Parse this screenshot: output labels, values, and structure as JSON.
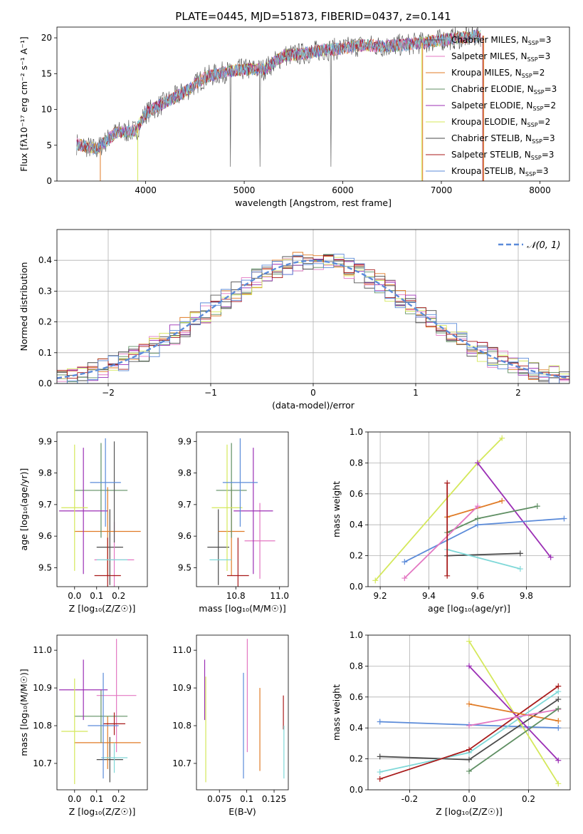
{
  "page_title": "PLATE=0445, MJD=51873, FIBERID=0437, z=0.141",
  "colors": {
    "series": [
      "#555555",
      "#e377c2",
      "#e07b26",
      "#5f8f63",
      "#9b2fb5",
      "#d4e85a",
      "#4a4a4a",
      "#a81a1a",
      "#7fd8d8"
    ],
    "gaussian": "#5b8bd9",
    "blue_series": "#5b8bd9"
  },
  "chart_data": [
    {
      "id": "spectrum",
      "type": "line",
      "title": "PLATE=0445, MJD=51873, FIBERID=0437, z=0.141",
      "xlabel": "wavelength [Angstrom, rest frame]",
      "ylabel": "Flux [fλ10⁻¹⁷ erg cm⁻² s⁻¹ A⁻¹]",
      "xlim": [
        3100,
        8300
      ],
      "ylim": [
        0,
        21.5
      ],
      "xticks": [
        4000,
        5000,
        6000,
        7000,
        8000
      ],
      "yticks": [
        0,
        5,
        10,
        15,
        20
      ],
      "legend": [
        "Chabrier MILES, N_SSP=3",
        "Salpeter MILES, N_SSP=3",
        "Kroupa MILES, N_SSP=2",
        "Chabrier ELODIE, N_SSP=3",
        "Salpeter ELODIE, N_SSP=2",
        "Kroupa ELODIE, N_SSP=2",
        "Chabrier STELIB, N_SSP=3",
        "Salpeter STELIB, N_SSP=3",
        "Kroupa STELIB, N_SSP=3"
      ],
      "legend_placement": "upper-right",
      "continuum_x": [
        3300,
        3500,
        3700,
        3900,
        4000,
        4200,
        4400,
        4600,
        4800,
        5000,
        5200,
        5400,
        5600,
        5800,
        6000,
        6200,
        6400,
        6600,
        6800,
        7000,
        7200,
        7400
      ],
      "continuum_y": [
        5.2,
        4.4,
        6.8,
        7.0,
        9.5,
        11.0,
        12.5,
        14.5,
        15.2,
        15.6,
        15.6,
        17.5,
        17.8,
        18.3,
        18.5,
        19.0,
        18.8,
        19.0,
        19.3,
        19.7,
        20.0,
        20.3
      ]
    },
    {
      "id": "residuals",
      "type": "line",
      "xlabel": "(data-model)/error",
      "ylabel": "Normed distribution",
      "xlim": [
        -2.5,
        2.5
      ],
      "ylim": [
        0,
        0.5
      ],
      "xticks": [
        -2,
        -1,
        0,
        1,
        2
      ],
      "yticks": [
        0.0,
        0.1,
        0.2,
        0.3,
        0.4
      ],
      "grid": true,
      "legend": [
        "𝒩(0, 1)"
      ],
      "legend_placement": "upper-right"
    },
    {
      "id": "age_vs_Z",
      "type": "scatter",
      "xlabel": "Z [log₁₀(Z/Z☉)]",
      "ylabel": "age  [log₁₀(age/yr)]",
      "xlim": [
        -0.08,
        0.33
      ],
      "ylim": [
        9.44,
        9.93
      ],
      "xticks": [
        0.0,
        0.1,
        0.2
      ],
      "yticks": [
        9.5,
        9.6,
        9.7,
        9.8,
        9.9
      ],
      "points": [
        {
          "c": 6,
          "x": 0.16,
          "y": 9.565,
          "ex": 0.06,
          "ey": 0.12
        },
        {
          "c": 1,
          "x": 0.18,
          "y": 9.525,
          "ex": 0.09,
          "ey": 0.12
        },
        {
          "c": 2,
          "x": 0.15,
          "y": 9.615,
          "ex": 0.15,
          "ey": 0.14
        },
        {
          "c": 3,
          "x": 0.12,
          "y": 9.745,
          "ex": 0.12,
          "ey": 0.15
        },
        {
          "c": 4,
          "x": 0.04,
          "y": 9.68,
          "ex": 0.11,
          "ey": 0.2
        },
        {
          "c": 5,
          "x": 0.0,
          "y": 9.69,
          "ex": 0.06,
          "ey": 0.2
        },
        {
          "c": 0,
          "x": 0.18,
          "y": 9.74,
          "ex": 0.0,
          "ey": 0.16
        },
        {
          "c": 7,
          "x": 0.15,
          "y": 9.475,
          "ex": 0.06,
          "ey": 0.12
        },
        {
          "c": 8,
          "x": 0.17,
          "y": 9.525,
          "ex": 0.07,
          "ey": 0.0
        },
        {
          "c": 9,
          "x": 0.14,
          "y": 9.77,
          "ex": 0.07,
          "ey": 0.14
        }
      ]
    },
    {
      "id": "age_vs_mass",
      "type": "scatter",
      "xlabel": "mass [log₁₀(M/M☉)]",
      "ylabel": "",
      "xlim": [
        10.62,
        11.04
      ],
      "ylim": [
        9.44,
        9.93
      ],
      "xticks": [
        10.8,
        11.0
      ],
      "yticks": [
        9.5,
        9.6,
        9.7,
        9.8,
        9.9
      ],
      "points": [
        {
          "c": 6,
          "x": 10.72,
          "y": 9.565,
          "ex": 0.05,
          "ey": 0.12
        },
        {
          "c": 1,
          "x": 10.91,
          "y": 9.585,
          "ex": 0.07,
          "ey": 0.12
        },
        {
          "c": 2,
          "x": 10.78,
          "y": 9.615,
          "ex": 0.06,
          "ey": 0.14
        },
        {
          "c": 3,
          "x": 10.78,
          "y": 9.745,
          "ex": 0.07,
          "ey": 0.15
        },
        {
          "c": 4,
          "x": 10.88,
          "y": 9.68,
          "ex": 0.09,
          "ey": 0.2
        },
        {
          "c": 5,
          "x": 10.76,
          "y": 9.69,
          "ex": 0.07,
          "ey": 0.2
        },
        {
          "c": 7,
          "x": 10.81,
          "y": 9.475,
          "ex": 0.05,
          "ey": 0.12
        },
        {
          "c": 8,
          "x": 10.73,
          "y": 9.525,
          "ex": 0.05,
          "ey": 0.0
        },
        {
          "c": 9,
          "x": 10.82,
          "y": 9.77,
          "ex": 0.08,
          "ey": 0.14
        }
      ]
    },
    {
      "id": "weight_vs_age",
      "type": "line",
      "xlabel": "age  [log₁₀(age/yr)]",
      "ylabel": "mass weight",
      "xlim": [
        9.15,
        9.98
      ],
      "ylim": [
        0,
        1.0
      ],
      "xticks": [
        9.2,
        9.4,
        9.6,
        9.8
      ],
      "yticks": [
        0.0,
        0.2,
        0.4,
        0.6,
        0.8,
        1.0
      ],
      "grid": true,
      "series": [
        {
          "c": 5,
          "x": [
            9.18,
            9.6,
            9.7
          ],
          "y": [
            0.04,
            0.8,
            0.96
          ]
        },
        {
          "c": 4,
          "x": [
            9.6,
            9.9
          ],
          "y": [
            0.8,
            0.19
          ]
        },
        {
          "c": 3,
          "x": [
            9.475,
            9.6,
            9.845
          ],
          "y": [
            0.35,
            0.44,
            0.52
          ]
        },
        {
          "c": 9,
          "x": [
            9.3,
            9.6,
            9.955
          ],
          "y": [
            0.16,
            0.4,
            0.44
          ]
        },
        {
          "c": 2,
          "x": [
            9.475,
            9.7
          ],
          "y": [
            0.45,
            0.555
          ]
        },
        {
          "c": 1,
          "x": [
            9.3,
            9.6
          ],
          "y": [
            0.055,
            0.52
          ]
        },
        {
          "c": 6,
          "x": [
            9.475,
            9.775
          ],
          "y": [
            0.2,
            0.215
          ]
        },
        {
          "c": 8,
          "x": [
            9.475,
            9.775
          ],
          "y": [
            0.24,
            0.115
          ]
        },
        {
          "c": 7,
          "x": [
            9.475,
            9.475
          ],
          "y": [
            0.07,
            0.67
          ]
        }
      ]
    },
    {
      "id": "mass_vs_Z",
      "type": "scatter",
      "xlabel": "Z [log₁₀(Z/Z☉)]",
      "ylabel": "mass [log₁₀(M/M☉)]",
      "xlim": [
        -0.08,
        0.33
      ],
      "ylim": [
        10.63,
        11.04
      ],
      "xticks": [
        0.0,
        0.1,
        0.2
      ],
      "yticks": [
        10.7,
        10.8,
        10.9,
        11.0
      ],
      "points": [
        {
          "c": 6,
          "x": 0.16,
          "y": 10.71,
          "ex": 0.06,
          "ey": 0.06
        },
        {
          "c": 1,
          "x": 0.19,
          "y": 10.88,
          "ex": 0.09,
          "ey": 0.15
        },
        {
          "c": 2,
          "x": 0.15,
          "y": 10.755,
          "ex": 0.15,
          "ey": 0.07
        },
        {
          "c": 3,
          "x": 0.12,
          "y": 10.825,
          "ex": 0.12,
          "ey": 0.07
        },
        {
          "c": 4,
          "x": 0.04,
          "y": 10.895,
          "ex": 0.11,
          "ey": 0.08
        },
        {
          "c": 5,
          "x": 0.0,
          "y": 10.785,
          "ex": 0.06,
          "ey": 0.14
        },
        {
          "c": 7,
          "x": 0.18,
          "y": 10.805,
          "ex": 0.05,
          "ey": 0.03
        },
        {
          "c": 8,
          "x": 0.18,
          "y": 10.715,
          "ex": 0.06,
          "ey": 0.04
        },
        {
          "c": 9,
          "x": 0.13,
          "y": 10.8,
          "ex": 0.07,
          "ey": 0.14
        }
      ]
    },
    {
      "id": "mass_vs_ebv",
      "type": "scatter",
      "xlabel": "E(B-V)",
      "ylabel": "",
      "xlim": [
        0.054,
        0.138
      ],
      "ylim": [
        10.63,
        11.04
      ],
      "xticks": [
        0.075,
        0.1,
        0.125
      ],
      "yticks": [
        10.7,
        10.8,
        10.9,
        11.0
      ],
      "points": [
        {
          "c": 4,
          "x": 0.0615,
          "y": 10.895,
          "ex": 0,
          "ey": 0.08
        },
        {
          "c": 5,
          "x": 0.0625,
          "y": 10.79,
          "ex": 0,
          "ey": 0.14
        },
        {
          "c": 9,
          "x": 0.097,
          "y": 10.8,
          "ex": 0,
          "ey": 0.14
        },
        {
          "c": 1,
          "x": 0.1005,
          "y": 10.88,
          "ex": 0,
          "ey": 0.15
        },
        {
          "c": 2,
          "x": 0.112,
          "y": 10.79,
          "ex": 0,
          "ey": 0.11
        },
        {
          "c": 7,
          "x": 0.1335,
          "y": 10.835,
          "ex": 0,
          "ey": 0.045
        },
        {
          "c": 8,
          "x": 0.134,
          "y": 10.73,
          "ex": 0,
          "ey": 0.07
        }
      ]
    },
    {
      "id": "weight_vs_Z",
      "type": "line",
      "xlabel": "Z [log₁₀(Z/Z☉)]",
      "ylabel": "mass weight",
      "xlim": [
        -0.34,
        0.34
      ],
      "ylim": [
        0,
        1.0
      ],
      "xticks": [
        -0.2,
        0.0,
        0.2
      ],
      "yticks": [
        0.0,
        0.2,
        0.4,
        0.6,
        0.8,
        1.0
      ],
      "grid": true,
      "series": [
        {
          "c": 9,
          "x": [
            -0.3,
            0.0,
            0.3
          ],
          "y": [
            0.44,
            0.42,
            0.4
          ]
        },
        {
          "c": 6,
          "x": [
            -0.3,
            0.0,
            0.3
          ],
          "y": [
            0.215,
            0.195,
            0.585
          ]
        },
        {
          "c": 8,
          "x": [
            -0.3,
            0.0,
            0.3
          ],
          "y": [
            0.115,
            0.24,
            0.635
          ]
        },
        {
          "c": 7,
          "x": [
            -0.3,
            0.0,
            0.3
          ],
          "y": [
            0.07,
            0.26,
            0.67
          ]
        },
        {
          "c": 5,
          "x": [
            0.0,
            0.3
          ],
          "y": [
            0.96,
            0.04
          ]
        },
        {
          "c": 4,
          "x": [
            0.0,
            0.3
          ],
          "y": [
            0.8,
            0.19
          ]
        },
        {
          "c": 2,
          "x": [
            0.0,
            0.3
          ],
          "y": [
            0.555,
            0.445
          ]
        },
        {
          "c": 1,
          "x": [
            0.0,
            0.3
          ],
          "y": [
            0.415,
            0.52
          ]
        },
        {
          "c": 3,
          "x": [
            0.0,
            0.3
          ],
          "y": [
            0.12,
            0.525
          ]
        }
      ]
    }
  ]
}
